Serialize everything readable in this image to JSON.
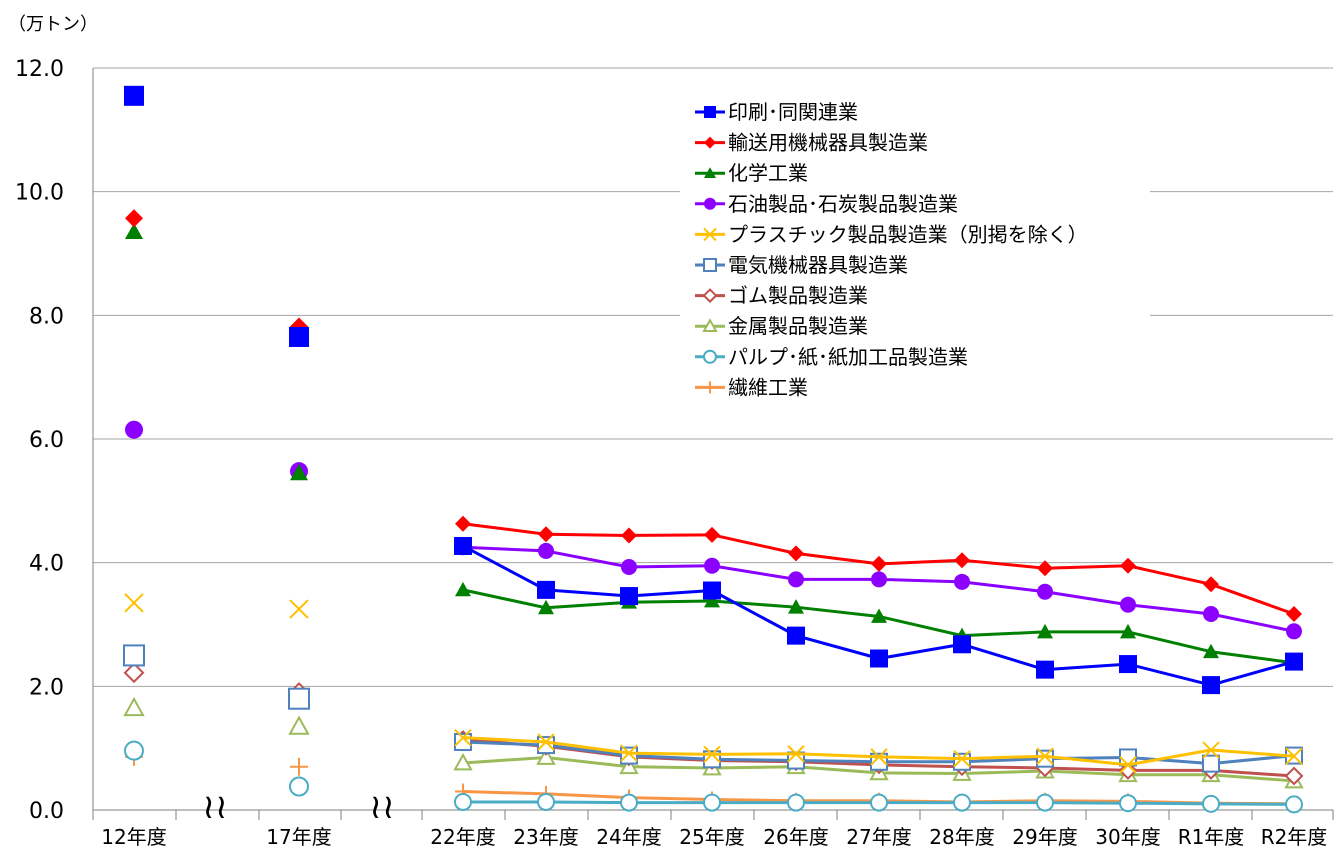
{
  "chart_data": {
    "type": "line",
    "unit_label": "（万トン）",
    "categories": [
      "12年度",
      "17年度",
      "22年度",
      "23年度",
      "24年度",
      "25年度",
      "26年度",
      "27年度",
      "28年度",
      "29年度",
      "30年度",
      "R1年度",
      "R2年度"
    ],
    "axis_break_mark": "≀≀",
    "ylim": [
      0,
      12
    ],
    "yticks": [
      "0.0",
      "2.0",
      "4.0",
      "6.0",
      "8.0",
      "10.0",
      "12.0"
    ],
    "ytick_values": [
      0,
      2,
      4,
      6,
      8,
      10,
      12
    ],
    "grid": "horizontal",
    "legend_position": "top-right",
    "series": [
      {
        "name": "印刷･同関連業",
        "color": "#0000ff",
        "marker": "square-filled",
        "values": [
          11.55,
          7.65,
          4.27,
          3.56,
          3.46,
          3.55,
          2.82,
          2.45,
          2.68,
          2.27,
          2.36,
          2.02,
          2.4
        ]
      },
      {
        "name": "輸送用機械器具製造業",
        "color": "#ff0000",
        "marker": "diamond-filled",
        "values": [
          9.57,
          7.82,
          4.63,
          4.46,
          4.44,
          4.45,
          4.15,
          3.98,
          4.04,
          3.91,
          3.95,
          3.65,
          3.17
        ]
      },
      {
        "name": "化学工業",
        "color": "#008000",
        "marker": "triangle-filled",
        "values": [
          9.35,
          5.45,
          3.56,
          3.27,
          3.36,
          3.38,
          3.28,
          3.13,
          2.82,
          2.88,
          2.88,
          2.56,
          2.38
        ]
      },
      {
        "name": "石油製品･石炭製品製造業",
        "color": "#8b00ff",
        "marker": "circle-filled",
        "values": [
          6.15,
          5.48,
          4.25,
          4.19,
          3.93,
          3.95,
          3.73,
          3.73,
          3.69,
          3.53,
          3.32,
          3.17,
          2.89
        ]
      },
      {
        "name": "プラスチック製品製造業（別掲を除く）",
        "color": "#ffc000",
        "marker": "x",
        "values": [
          3.35,
          3.25,
          1.17,
          1.1,
          0.92,
          0.9,
          0.91,
          0.86,
          0.83,
          0.87,
          0.73,
          0.97,
          0.87
        ]
      },
      {
        "name": "電気機械器具製造業",
        "color": "#4f81bd",
        "marker": "square-open",
        "values": [
          2.5,
          1.8,
          1.1,
          1.05,
          0.88,
          0.82,
          0.8,
          0.78,
          0.78,
          0.83,
          0.85,
          0.75,
          0.88
        ]
      },
      {
        "name": "ゴム製品製造業",
        "color": "#c0504d",
        "marker": "diamond-open",
        "values": [
          2.22,
          1.9,
          1.14,
          1.03,
          0.86,
          0.8,
          0.78,
          0.73,
          0.7,
          0.68,
          0.64,
          0.64,
          0.55
        ]
      },
      {
        "name": "金属製品製造業",
        "color": "#9bbb59",
        "marker": "triangle-open",
        "values": [
          1.65,
          1.35,
          0.76,
          0.85,
          0.7,
          0.68,
          0.7,
          0.6,
          0.59,
          0.63,
          0.57,
          0.57,
          0.47
        ]
      },
      {
        "name": "パルプ･紙･紙加工品製造業",
        "color": "#4bacc6",
        "marker": "circle-open",
        "values": [
          0.96,
          0.38,
          0.13,
          0.13,
          0.12,
          0.12,
          0.12,
          0.12,
          0.12,
          0.12,
          0.11,
          0.1,
          0.09
        ]
      },
      {
        "name": "繊維工業",
        "color": "#f79646",
        "marker": "plus",
        "values": [
          0.86,
          0.7,
          0.3,
          0.26,
          0.2,
          0.17,
          0.15,
          0.15,
          0.13,
          0.15,
          0.14,
          0.11,
          0.1
        ]
      }
    ]
  }
}
